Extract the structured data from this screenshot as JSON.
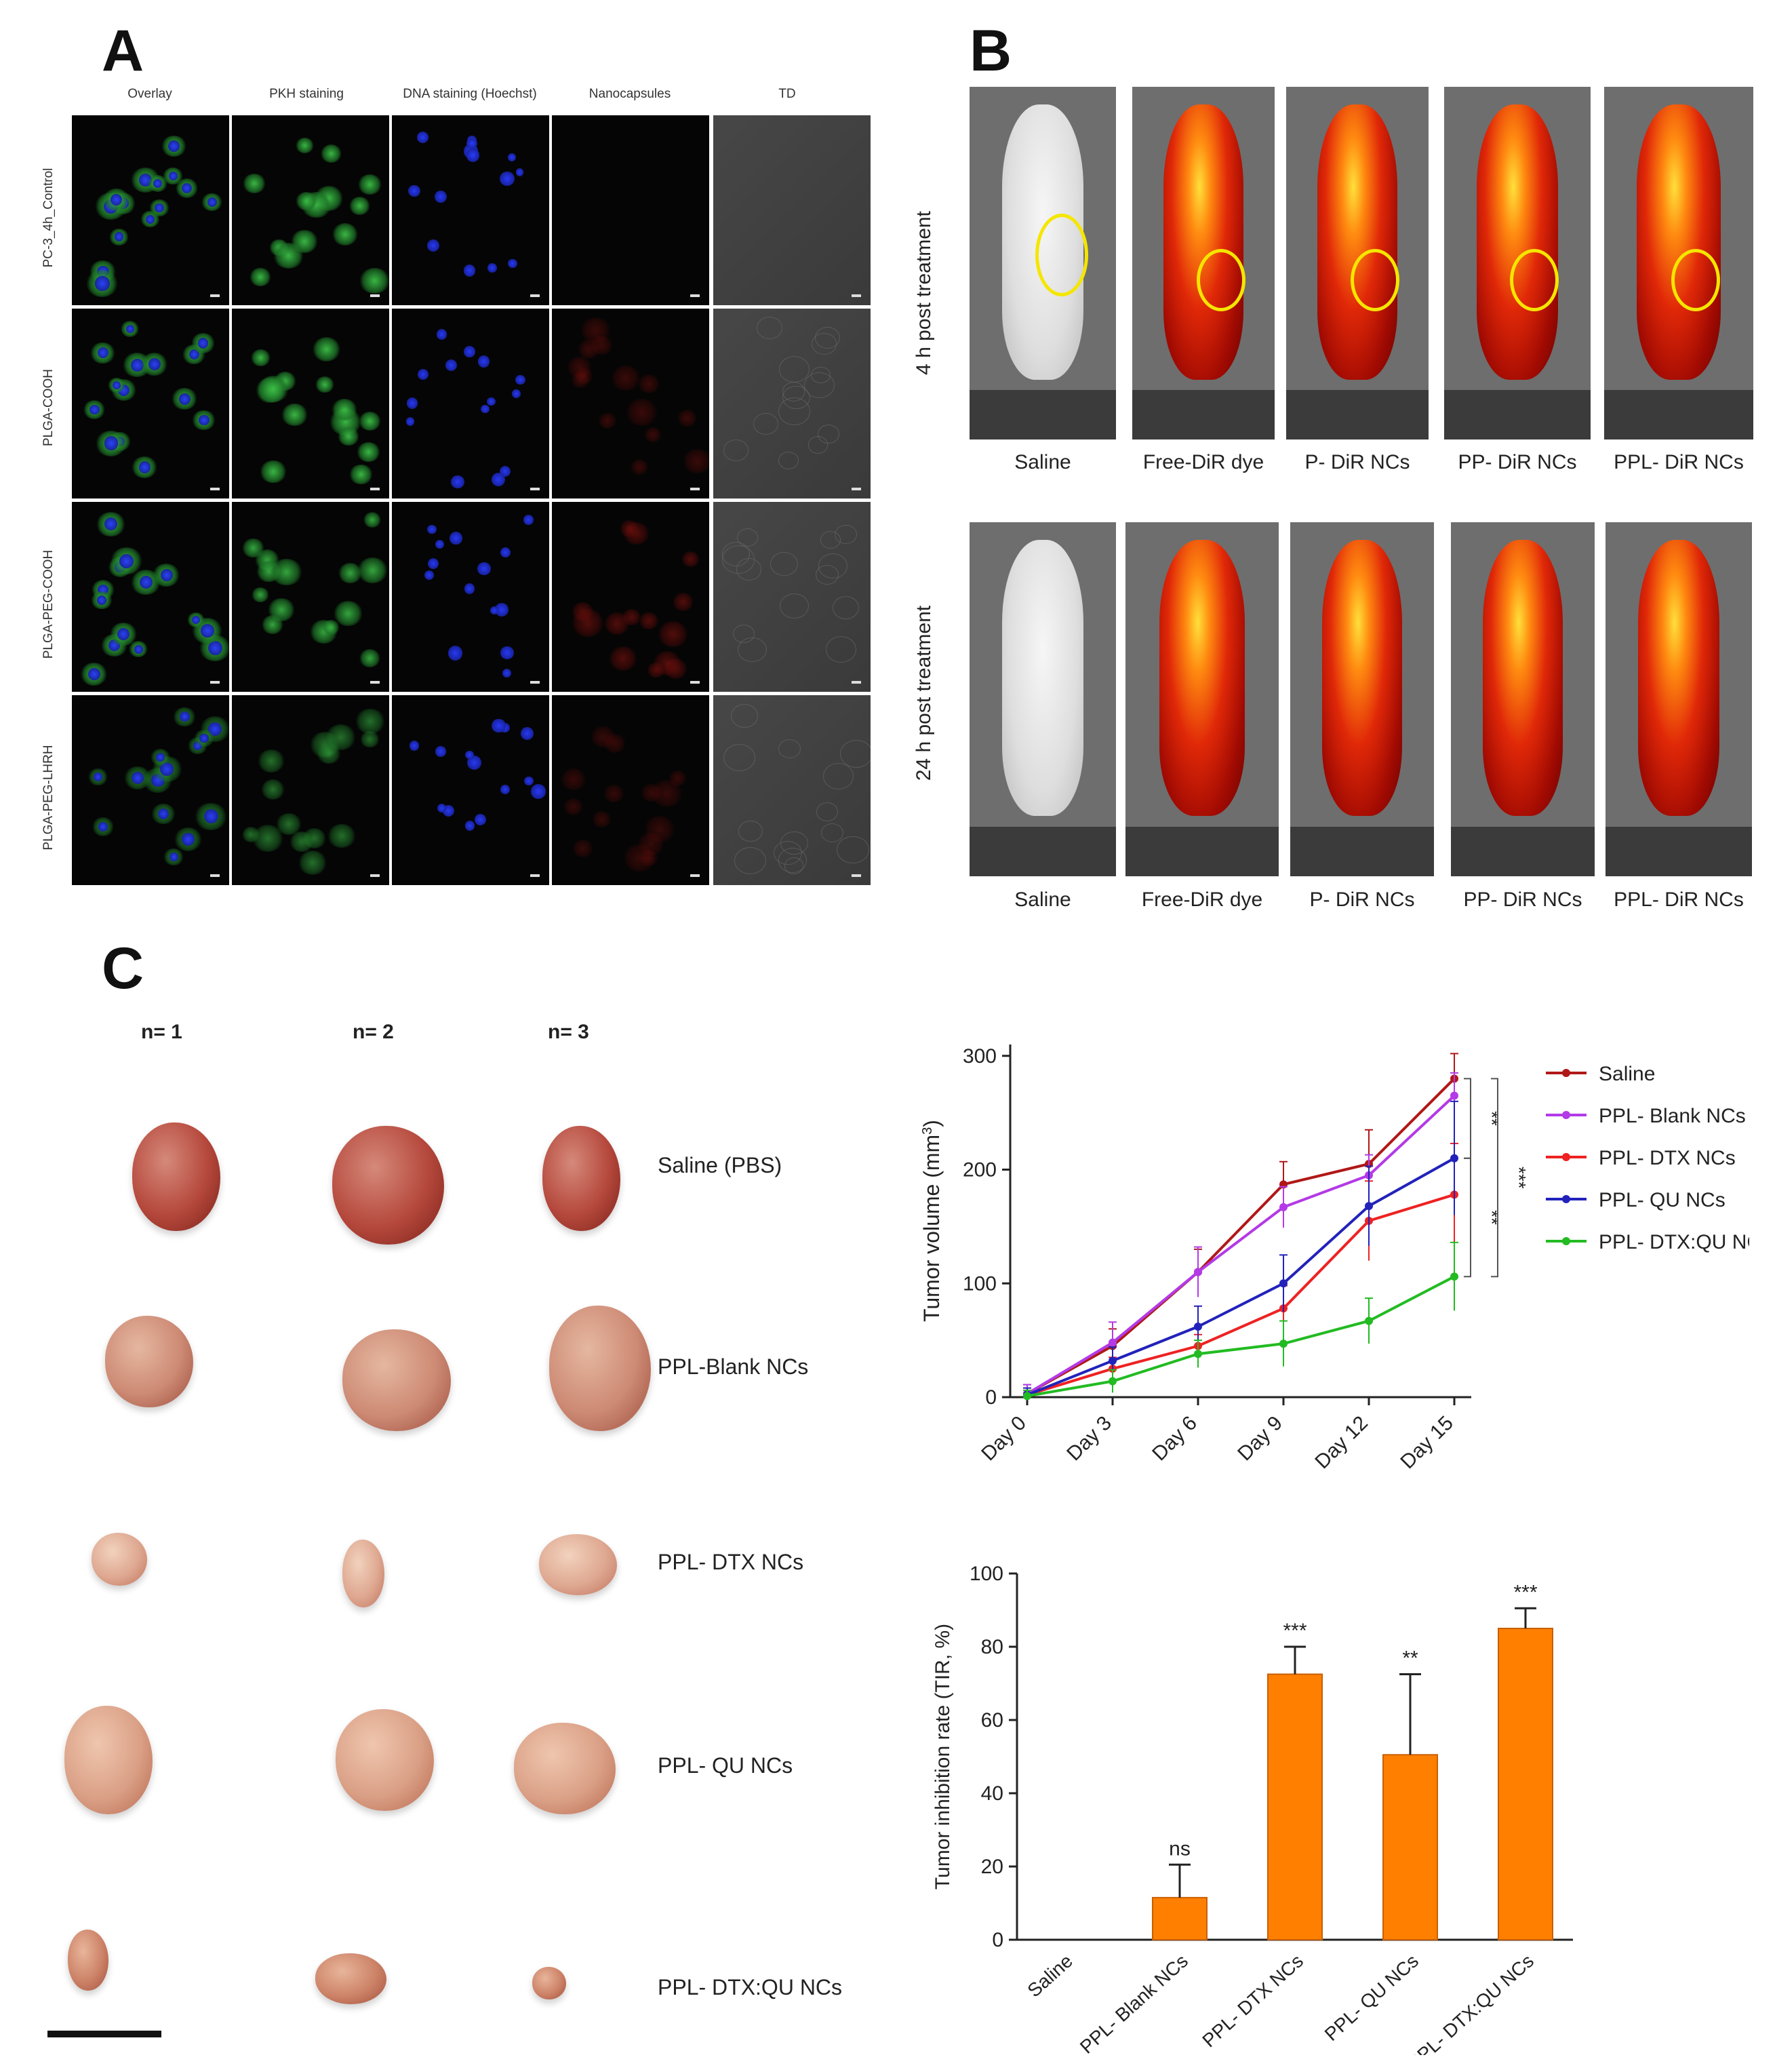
{
  "panels": {
    "a": "A",
    "b": "B",
    "c": "C"
  },
  "panel_a": {
    "columns": [
      "Overlay",
      "PKH staining",
      "DNA staining (Hoechst)",
      "Nanocapsules",
      "TD"
    ],
    "rows": [
      "PC-3_4h_Control",
      "PLGA-COOH",
      "PLGA-PEG-COOH",
      "PLGA-PEG-LHRH"
    ]
  },
  "panel_b": {
    "row_labels": [
      "4 h post treatment",
      "24 h post treatment"
    ],
    "groups": [
      "Saline",
      "Free-DiR dye",
      "P- DiR NCs",
      "PP- DiR NCs",
      "PPL- DiR NCs"
    ]
  },
  "panel_c": {
    "replicates": [
      "n= 1",
      "n= 2",
      "n= 3"
    ],
    "groups": [
      "Saline (PBS)",
      "PPL-Blank NCs",
      "PPL- DTX NCs",
      "PPL- QU NCs",
      "PPL- DTX:QU NCs"
    ]
  },
  "chart_data": [
    {
      "type": "line",
      "ylabel": "Tumor volume (mm³)",
      "ylabel_plain": "Tumor volume (mm",
      "ylabel_sup": "3",
      "ylabel_close": ")",
      "x": [
        "Day 0",
        "Day 3",
        "Day 6",
        "Day 9",
        "Day 12",
        "Day 15"
      ],
      "ylim": [
        0,
        310
      ],
      "yticks": [
        0,
        100,
        200,
        300
      ],
      "legend_position": "right",
      "significance": [
        "**",
        "***",
        "**"
      ],
      "series": [
        {
          "name": "Saline",
          "color": "#b01818",
          "values": [
            3,
            45,
            110,
            187,
            205,
            280
          ],
          "err": [
            8,
            15,
            20,
            20,
            30,
            22
          ]
        },
        {
          "name": "PPL- Blank NCs",
          "color": "#b33ae6",
          "values": [
            3,
            48,
            110,
            167,
            195,
            265
          ],
          "err": [
            8,
            18,
            22,
            18,
            18,
            20
          ]
        },
        {
          "name": "PPL- DTX NCs",
          "color": "#ee2222",
          "values": [
            2,
            25,
            45,
            78,
            155,
            178
          ],
          "err": [
            6,
            10,
            10,
            20,
            35,
            45
          ]
        },
        {
          "name": "PPL- QU NCs",
          "color": "#2222bb",
          "values": [
            2,
            32,
            62,
            100,
            168,
            210
          ],
          "err": [
            6,
            12,
            18,
            25,
            35,
            50
          ]
        },
        {
          "name": "PPL- DTX:QU NCs",
          "color": "#22bb22",
          "values": [
            1,
            14,
            38,
            47,
            67,
            106
          ],
          "err": [
            5,
            10,
            12,
            20,
            20,
            30
          ]
        }
      ]
    },
    {
      "type": "bar",
      "ylabel": "Tumor inhibition rate (TIR, %)",
      "categories": [
        "Saline",
        "PPL- Blank NCs",
        "PPL- DTX NCs",
        "PPL- QU NCs",
        "PPL- DTX:QU NCs"
      ],
      "values": [
        0,
        11.5,
        72.5,
        50.5,
        85
      ],
      "errors": [
        0,
        9,
        7.5,
        22,
        5.5
      ],
      "annotations": [
        "",
        "ns",
        "***",
        "**",
        "***"
      ],
      "ylim": [
        0,
        100
      ],
      "yticks": [
        0,
        20,
        40,
        60,
        80,
        100
      ],
      "color": "#ff7f00"
    }
  ]
}
